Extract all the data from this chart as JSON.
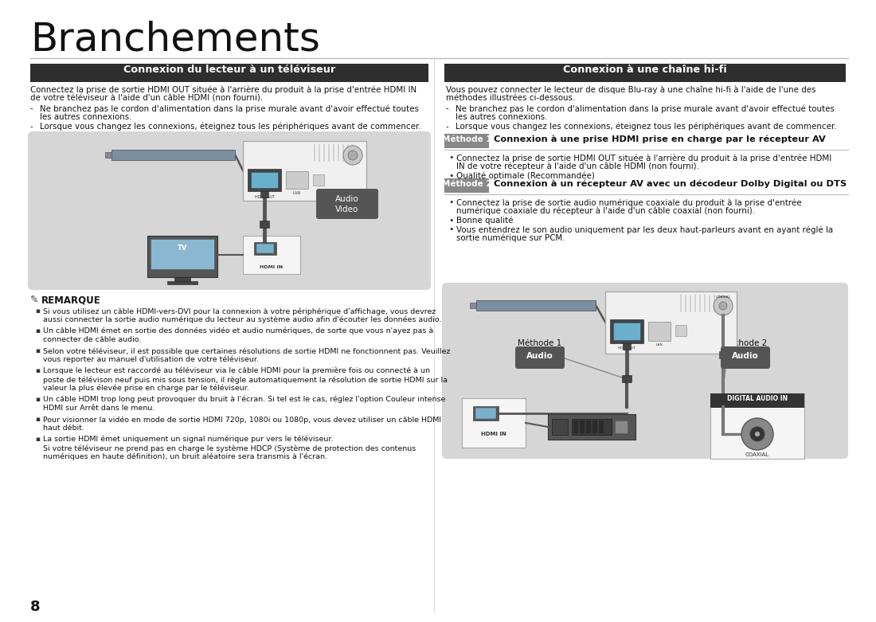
{
  "title": "Branchements",
  "bg_color": "#ffffff",
  "left_header": "Connexion du lecteur à un téléviseur",
  "right_header": "Connexion à une chaîne hi-fi",
  "header_bg": "#2e2e2e",
  "header_text_color": "#ffffff",
  "left_intro_l1": "Connectez la prise de sortie HDMI OUT située à l'arrière du produit à la prise d'entrée HDMI IN",
  "left_intro_l2": "de votre téléviseur à l'aide d'un câble HDMI (non fourni).",
  "left_b1_l1": "Ne branchez pas le cordon d'alimentation dans la prise murale avant d'avoir effectué toutes",
  "left_b1_l2": "les autres connexions.",
  "left_b2": "Lorsque vous changez les connexions, éteignez tous les périphériques avant de commencer.",
  "right_intro_l1": "Vous pouvez connecter le lecteur de disque Blu-ray à une chaîne hi-fi à l'aide de l'une des",
  "right_intro_l2": "méthodes illustrées ci-dessous.",
  "right_b1_l1": "Ne branchez pas le cordon d'alimentation dans la prise murale avant d'avoir effectué toutes",
  "right_b1_l2": "les autres connexions.",
  "right_b2": "Lorsque vous changez les connexions, éteignez tous les périphériques avant de commencer.",
  "method1_tag": "Méthode 1",
  "method1_title": "Connexion à une prise HDMI prise en charge par le récepteur AV",
  "method1_b1_l1": "Connectez la prise de sortie HDMI OUT située à l'arrière du produit à la prise d'entrée HDMI",
  "method1_b1_l2": "IN de votre récepteur à l'aide d'un câble HDMI (non fourni).",
  "method1_b2": "Qualité optimale (Recommandée)",
  "method2_tag": "Méthode 2",
  "method2_title": "Connexion à un récepteur AV avec un décodeur Dolby Digital ou DTS",
  "method2_b1_l1": "Connectez la prise de sortie audio numérique coaxiale du produit à la prise d'entrée",
  "method2_b1_l2": "numérique coaxiale du récepteur à l'aide d'un câble coaxial (non fourni).",
  "method2_b2": "Bonne qualité",
  "method2_b3_l1": "Vous entendrez le son audio uniquement par les deux haut-parleurs avant en ayant réglé la",
  "method2_b3_l2": "sortie numérique sur PCM.",
  "remarque_title": "REMARQUE",
  "rem_b1_l1": "Si vous utilisez un câble HDMI-vers-DVI pour la connexion à votre périphérique d'affichage, vous devrez",
  "rem_b1_l2": "aussi connecter la sortie audio numérique du lecteur au système audio afin d'écouter les données audio.",
  "rem_b2_l1": "Un câble HDMI émet en sortie des données vidéo et audio numériques, de sorte que vous n'ayez pas à",
  "rem_b2_l2": "connecter de câble audio.",
  "rem_b3_l1": "Selon votre téléviseur, il est possible que certaines résolutions de sortie HDMI ne fonctionnent pas. Veuillez",
  "rem_b3_l2": "vous reporter au manuel d'utilisation de votre téléviseur.",
  "rem_b4_l1": "Lorsque le lecteur est raccordé au téléviseur via le câble HDMI pour la première fois ou connecté à un",
  "rem_b4_l2": "poste de télévison neuf puis mis sous tension, il règle automatiquement la résolution de sortie HDMI sur la",
  "rem_b4_l3": "valeur la plus élevée prise en charge par le téléviseur.",
  "rem_b5_l1": "Un câble HDMI trop long peut provoquer du bruit à l'écran. Si tel est le cas, réglez l'option Couleur intense",
  "rem_b5_l2": "HDMI sur Arrêt dans le menu.",
  "rem_b6_l1": "Pour visionner la vidéo en mode de sortie HDMI 720p, 1080i ou 1080p, vous devez utiliser un câble HDMI",
  "rem_b6_l2": "haut débit.",
  "rem_b7_l1": "La sortie HDMI émet uniquement un signal numérique pur vers le téléviseur.",
  "rem_b7_l2": "Si votre téléviseur ne prend pas en charge le système HDCP (Système de protection des contenus",
  "rem_b7_l3": "numériques en haute définition), un bruit aléatoire sera transmis à l'écran.",
  "page_number": "8",
  "diagram_bg": "#d6d6d6",
  "audio_video_text": "Audio\nVideo",
  "tv_text": "TV",
  "hdmi_in_text": "HDMI IN",
  "m1_label_line1": "Méthode 1",
  "m1_label_line2": "Audio",
  "m2_label_line1": "Méthode 2",
  "m2_label_line2": "Audio",
  "coaxial_text": "COAXIAL",
  "digital_audio_text": "DIGITAL AUDIO IN",
  "hdmi_out_text": "HDMI OUT",
  "lan_text": "LAN"
}
